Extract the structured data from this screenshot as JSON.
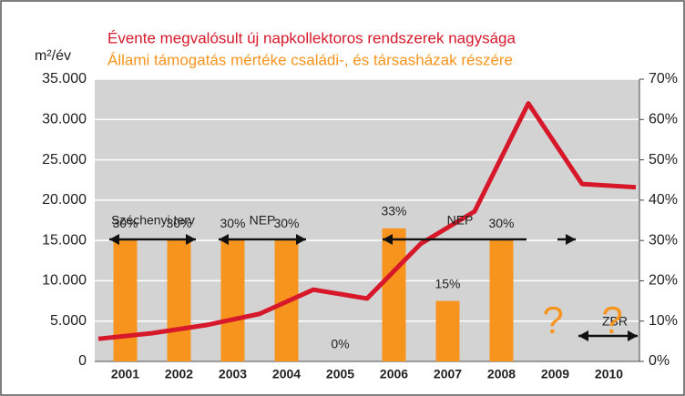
{
  "chart_data": {
    "type": "bar",
    "title": "Évente megvalósult új napkollektoros rendszerek nagysága",
    "subtitle": "Állami támogatás mértéke családi-, és társasházak részére",
    "y_label": "m²/év",
    "x": [
      2001,
      2002,
      2003,
      2004,
      2005,
      2006,
      2007,
      2008,
      2009,
      2010
    ],
    "xlim": [
      2000.5,
      2010.5
    ],
    "xticks": [
      2001,
      2002,
      2003,
      2004,
      2005,
      2006,
      2007,
      2008,
      2009,
      2010
    ],
    "ylim": [
      0,
      35000
    ],
    "yticks": [
      0,
      {
        "value": 5000,
        "label": "5.000"
      },
      {
        "value": 10000,
        "label": "10.000"
      },
      {
        "value": 15000,
        "label": "15.000"
      },
      {
        "value": 20000,
        "label": "20.000"
      },
      {
        "value": 25000,
        "label": "25.000"
      },
      {
        "value": 30000,
        "label": "30.000"
      },
      {
        "value": 35000,
        "label": "35.000"
      }
    ],
    "y2lim": [
      0,
      70
    ],
    "y2ticks": [
      {
        "value": 0,
        "label": "0%"
      },
      {
        "value": 10,
        "label": "10%"
      },
      {
        "value": 20,
        "label": "20%"
      },
      {
        "value": 30,
        "label": "30%"
      },
      {
        "value": 40,
        "label": "40%"
      },
      {
        "value": 50,
        "label": "50%"
      },
      {
        "value": 60,
        "label": "60%"
      },
      {
        "value": 70,
        "label": "70%"
      }
    ],
    "grid": true,
    "background": "#d3d3d3",
    "series": [
      {
        "type": "bar",
        "axis": "y2",
        "color": "#f7941d",
        "values": [
          30,
          30,
          30,
          30,
          0,
          33,
          15,
          30,
          null,
          null
        ],
        "value_labels": [
          "30%",
          "30%",
          "30%",
          "30%",
          "0%",
          "33%",
          "15%",
          "30%",
          null,
          null
        ]
      },
      {
        "type": "line",
        "color": "#d7182a",
        "x": [
          2000.5,
          2001.5,
          2002.5,
          2003.5,
          2004.5,
          2005.5,
          2006.5,
          2007.5,
          2008.5,
          2009.5,
          2010.5
        ],
        "values": [
          2800,
          3500,
          4500,
          5900,
          8900,
          7800,
          14600,
          18600,
          32000,
          22000,
          21600
        ]
      }
    ],
    "annotations": [
      "Széchenyi terv",
      "NEP",
      "NEP",
      "ZBR",
      "?",
      "?"
    ]
  }
}
